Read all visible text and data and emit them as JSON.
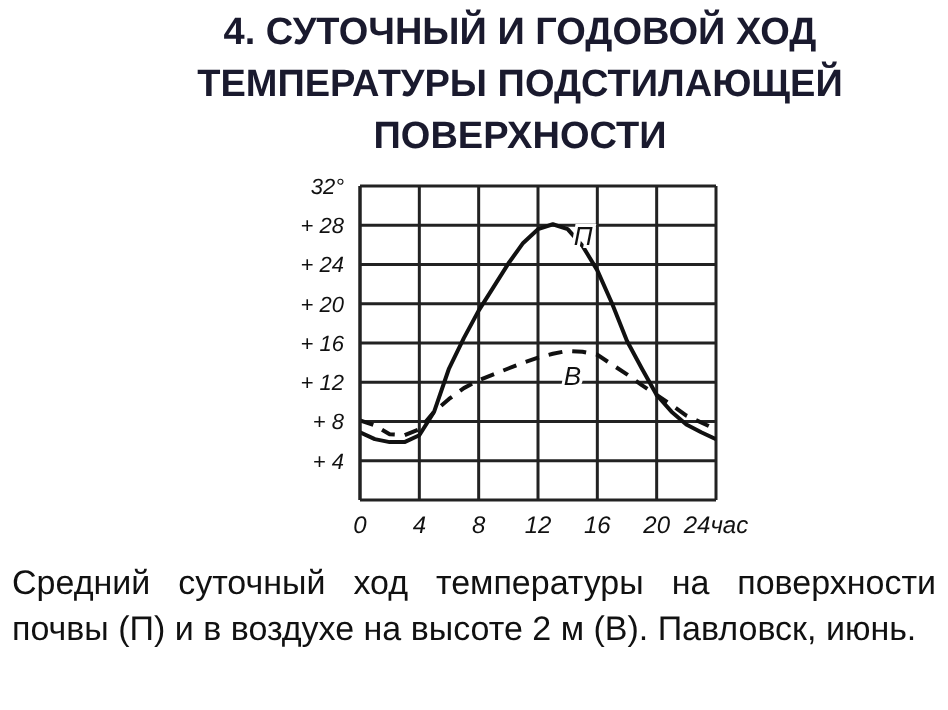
{
  "chart_data": {
    "type": "line",
    "title": "4. СУТОЧНЫЙ   И ГОДОВОЙ  ХОД ТЕМПЕРАТУРЫ ПОДСТИЛАЮЩЕЙ ПОВЕРХНОСТИ",
    "annotations": [
      "Средний суточный ход температуры на поверхности почвы (П) и в воздухе на высоте 2 м (В). Павловск, июнь."
    ],
    "x": [
      0,
      1,
      2,
      3,
      4,
      5,
      6,
      7,
      8,
      9,
      10,
      11,
      12,
      13,
      14,
      15,
      16,
      17,
      18,
      19,
      20,
      21,
      22,
      23,
      24
    ],
    "series": [
      {
        "name": "П",
        "color": "#111111",
        "line_style": "solid",
        "values": [
          6.9,
          6.2,
          5.9,
          5.9,
          6.6,
          9,
          13.4,
          16.5,
          19.3,
          21.7,
          24.1,
          26.2,
          27.6,
          28.1,
          27.6,
          25.9,
          23.4,
          20,
          16.2,
          13.4,
          10.7,
          9,
          7.7,
          6.9,
          6.2
        ]
      },
      {
        "name": "В",
        "color": "#111111",
        "line_style": "dashed",
        "values": [
          8.1,
          7.6,
          6.7,
          6.6,
          7.2,
          9,
          10.3,
          11.4,
          12.2,
          12.8,
          13.4,
          14,
          14.5,
          14.9,
          15.2,
          15.1,
          14.8,
          13.8,
          12.8,
          11.7,
          10.7,
          9.7,
          8.6,
          7.9,
          7.2
        ]
      }
    ],
    "xlim": [
      0,
      24
    ],
    "xticks": [
      0,
      4,
      8,
      12,
      16,
      20,
      {
        "value": 24,
        "label": "24час"
      }
    ],
    "ylim": [
      0,
      32
    ],
    "yticks": [
      {
        "value": 4,
        "label": "+ 4"
      },
      {
        "value": 8,
        "label": "+ 8"
      },
      {
        "value": 12,
        "label": "+ 12"
      },
      {
        "value": 16,
        "label": "+ 16"
      },
      {
        "value": 20,
        "label": "+ 20"
      },
      {
        "value": 24,
        "label": "+ 24"
      },
      {
        "value": 28,
        "label": "+ 28"
      },
      {
        "value": 32,
        "label": "32°"
      }
    ],
    "grid": true,
    "marker": "none",
    "legend": false
  }
}
